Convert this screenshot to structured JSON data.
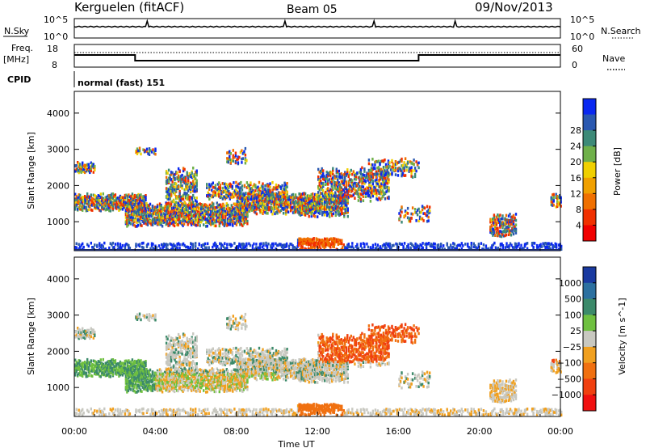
{
  "header": {
    "station": "Kerguelen (fitACF)",
    "beam": "Beam 05",
    "date": "09/Nov/2013"
  },
  "panels": {
    "nsky": {
      "left_label": "N.Sky",
      "ticks": [
        "10^5",
        "10^0"
      ],
      "right_label": "N.Search",
      "right_ticks": [
        "10^5",
        "10^0"
      ]
    },
    "freq": {
      "left_label_1": "Freq.",
      "left_label_2": "[MHz]",
      "ticks": [
        "18",
        "8"
      ],
      "right_label": "Nave",
      "right_ticks": [
        "60",
        "0"
      ]
    },
    "cpid": {
      "label": "CPID",
      "text": "normal (fast) 151"
    }
  },
  "chart_data": [
    {
      "type": "line",
      "title": "N.Sky / N.Search",
      "description": "Noise level (log scale) nearly flat across the day",
      "x": [
        "00:00",
        "04:00",
        "08:00",
        "12:00",
        "16:00",
        "20:00",
        "00:00"
      ],
      "yscale": "log"
    },
    {
      "type": "line",
      "name": "Freq. / Nave",
      "ylim_freq": [
        8,
        18
      ],
      "ylim_nave": [
        0,
        60
      ],
      "frequency_steps": [
        {
          "start": "00:00",
          "end": "03:00",
          "level": "high"
        },
        {
          "start": "03:00",
          "end": "17:00",
          "level": "low"
        },
        {
          "start": "17:00",
          "end": "24:00",
          "level": "high"
        }
      ]
    },
    {
      "type": "heatmap",
      "name": "Power",
      "xlabel": "Time UT",
      "ylabel": "Slant Range [km]",
      "yticks": [
        1000,
        2000,
        3000,
        4000
      ],
      "ylim": [
        200,
        4600
      ],
      "xticks": [
        "00:00",
        "04:00",
        "08:00",
        "12:00",
        "16:00",
        "20:00",
        "00:00"
      ],
      "colorbar": {
        "label": "Power [dB]",
        "ticks": [
          "4",
          "8",
          "12",
          "16",
          "20",
          "24",
          "28"
        ],
        "colors": [
          "#0a28f0",
          "#2a58b0",
          "#3d8a78",
          "#6fb04a",
          "#f0d000",
          "#f0a000",
          "#f07000",
          "#f03000",
          "#f00000"
        ]
      }
    },
    {
      "type": "heatmap",
      "name": "Velocity",
      "xlabel": "Time UT",
      "ylabel": "Slant Range [km]",
      "yticks": [
        1000,
        2000,
        3000,
        4000
      ],
      "ylim": [
        200,
        4600
      ],
      "xticks": [
        "00:00",
        "04:00",
        "08:00",
        "12:00",
        "16:00",
        "20:00",
        "00:00"
      ],
      "colorbar": {
        "label": "Velocity [m s^-1]",
        "ticks": [
          "1000",
          "500",
          "100",
          "25",
          "−25",
          "−100",
          "−500",
          "−1000"
        ],
        "colors": [
          "#1a3aa0",
          "#2c70a0",
          "#3c8a6a",
          "#6fc040",
          "#c8c8c0",
          "#f0a020",
          "#f07010",
          "#f04010",
          "#f01010"
        ]
      }
    }
  ],
  "axis": {
    "xlabel": "Time UT",
    "ylabel": "Slant Range [km]"
  }
}
